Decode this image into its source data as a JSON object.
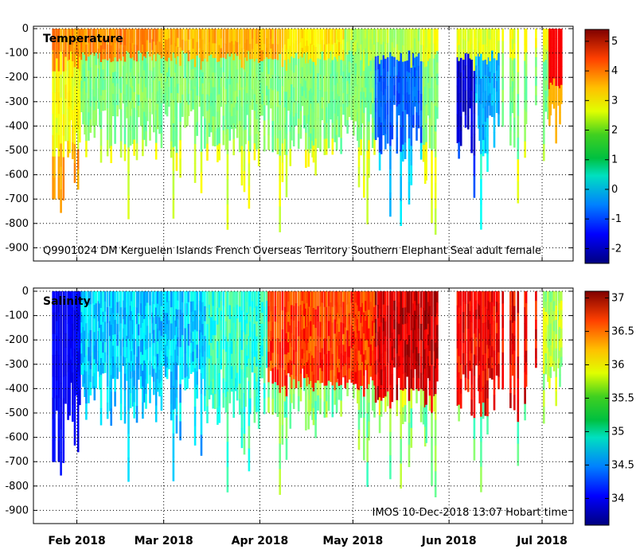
{
  "chart_data": [
    {
      "type": "heatmap",
      "title": "Temperature",
      "annotation": "Q9901024 DM Kerguelen Islands French Overseas Territory Southern Elephant Seal adult female",
      "ylim": [
        -950,
        0
      ],
      "yticks": [
        0,
        -100,
        -200,
        -300,
        -400,
        -500,
        -600,
        -700,
        -800,
        -900
      ],
      "ytick_labels": [
        "0",
        "-100",
        "-200",
        "-300",
        "-400",
        "-500",
        "-600",
        "-700",
        "-800",
        "-900"
      ],
      "colorbar": {
        "min": -2.5,
        "max": 5.4,
        "ticks": [
          -2,
          -1,
          0,
          1,
          2,
          3,
          4,
          5
        ],
        "tick_labels": [
          "-2",
          "-1",
          "0",
          "1",
          "2",
          "3",
          "4",
          "5"
        ]
      },
      "grid": true
    },
    {
      "type": "heatmap",
      "title": "Salinity",
      "annotation": "IMOS 10-Dec-2018 13:07 Hobart time",
      "ylim": [
        -950,
        0
      ],
      "yticks": [
        0,
        -100,
        -200,
        -300,
        -400,
        -500,
        -600,
        -700,
        -800,
        -900
      ],
      "ytick_labels": [
        "0",
        "-100",
        "-200",
        "-300",
        "-400",
        "-500",
        "-600",
        "-700",
        "-800",
        "-900"
      ],
      "colorbar": {
        "min": 33.6,
        "max": 37.1,
        "ticks": [
          34,
          34.5,
          35,
          35.5,
          36,
          36.5,
          37
        ],
        "tick_labels": [
          "34",
          "34.5",
          "35",
          "35.5",
          "36",
          "36.5",
          "37"
        ]
      },
      "grid": true
    }
  ],
  "x_axis": {
    "range_days": [
      0,
      174
    ],
    "ticks": [
      {
        "day": 14,
        "label": "Feb 2018"
      },
      {
        "day": 42,
        "label": "Mar 2018"
      },
      {
        "day": 73,
        "label": "Apr 2018"
      },
      {
        "day": 103,
        "label": "May 2018"
      },
      {
        "day": 134,
        "label": "Jun 2018"
      },
      {
        "day": 164,
        "label": "Jul 2018"
      }
    ]
  },
  "colors": {
    "background": "#ffffff",
    "gridline": "#000000"
  }
}
